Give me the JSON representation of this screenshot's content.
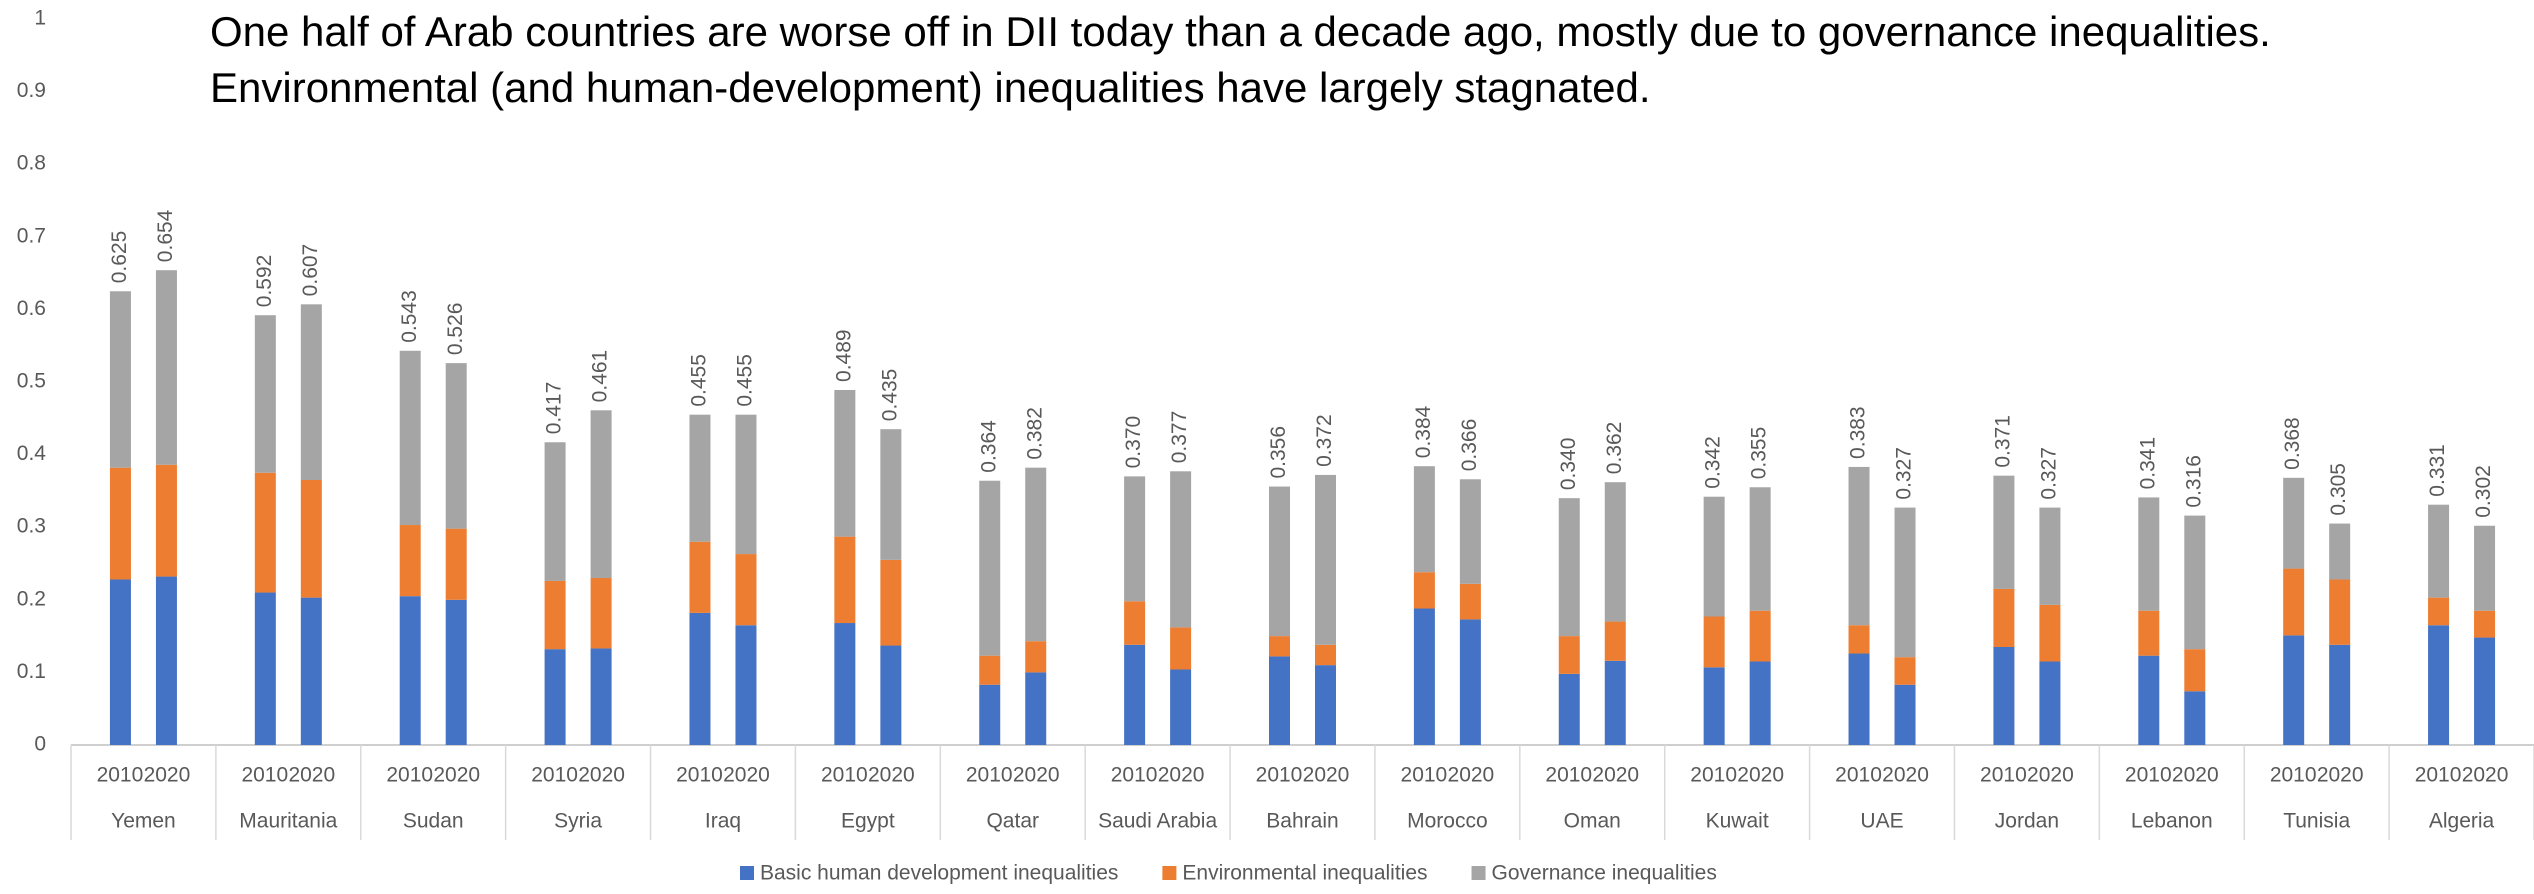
{
  "chart_data": {
    "type": "stacked-bar",
    "title": "One half of Arab countries are worse off in DII today than a decade ago, mostly due to governance inequalities.",
    "subtitle": "Environmental (and human-development) inequalities have largely stagnated.",
    "groups": [
      "Yemen",
      "Mauritania",
      "Sudan",
      "Syria",
      "Iraq",
      "Egypt",
      "Qatar",
      "Saudi Arabia",
      "Bahrain",
      "Morocco",
      "Oman",
      "Kuwait",
      "UAE",
      "Jordan",
      "Lebanon",
      "Tunisia",
      "Algeria"
    ],
    "subcategories": [
      "2010",
      "2020"
    ],
    "ylim": [
      0,
      1
    ],
    "yticks": [
      0,
      0.1,
      0.2,
      0.3,
      0.4,
      0.5,
      0.6,
      0.7,
      0.8,
      0.9,
      1
    ],
    "grid": false,
    "legend": "bottom",
    "series": [
      {
        "name": "Basic human development inequalities",
        "color": "#4472c4",
        "values": [
          0.228,
          0.232,
          0.21,
          0.203,
          0.205,
          0.2,
          0.132,
          0.133,
          0.182,
          0.165,
          0.168,
          0.137,
          0.083,
          0.1,
          0.138,
          0.104,
          0.122,
          0.11,
          0.188,
          0.173,
          0.098,
          0.116,
          0.107,
          0.115,
          0.126,
          0.083,
          0.135,
          0.115,
          0.123,
          0.074,
          0.151,
          0.138,
          0.165,
          0.148
        ]
      },
      {
        "name": "Environmental inequalities",
        "color": "#ed7d31",
        "values": [
          0.154,
          0.154,
          0.165,
          0.162,
          0.098,
          0.098,
          0.094,
          0.097,
          0.098,
          0.098,
          0.119,
          0.118,
          0.04,
          0.043,
          0.06,
          0.058,
          0.028,
          0.028,
          0.05,
          0.049,
          0.052,
          0.054,
          0.07,
          0.07,
          0.039,
          0.038,
          0.08,
          0.078,
          0.062,
          0.058,
          0.092,
          0.09,
          0.038,
          0.037
        ]
      },
      {
        "name": "Governance inequalities",
        "color": "#a5a5a5",
        "values": [
          0.243,
          0.268,
          0.217,
          0.242,
          0.24,
          0.228,
          0.191,
          0.231,
          0.175,
          0.192,
          0.202,
          0.18,
          0.241,
          0.239,
          0.172,
          0.215,
          0.206,
          0.234,
          0.146,
          0.144,
          0.19,
          0.192,
          0.165,
          0.17,
          0.218,
          0.206,
          0.156,
          0.134,
          0.156,
          0.184,
          0.125,
          0.077,
          0.128,
          0.117
        ]
      }
    ],
    "totals": [
      0.625,
      0.654,
      0.592,
      0.607,
      0.543,
      0.526,
      0.417,
      0.461,
      0.455,
      0.455,
      0.489,
      0.435,
      0.364,
      0.382,
      0.37,
      0.377,
      0.356,
      0.372,
      0.384,
      0.366,
      0.34,
      0.362,
      0.342,
      0.355,
      0.383,
      0.327,
      0.371,
      0.327,
      0.341,
      0.316,
      0.368,
      0.305,
      0.331,
      0.302
    ],
    "total_labels": [
      "0.625",
      "0.654",
      "0.592",
      "0.607",
      "0.543",
      "0.526",
      "0.417",
      "0.461",
      "0.455",
      "0.455",
      "0.489",
      "0.435",
      "0.364",
      "0.382",
      "0.370",
      "0.377",
      "0.356",
      "0.372",
      "0.384",
      "0.366",
      "0.340",
      "0.362",
      "0.342",
      "0.355",
      "0.383",
      "0.327",
      "0.371",
      "0.327",
      "0.341",
      "0.316",
      "0.368",
      "0.305",
      "0.331",
      "0.302"
    ]
  }
}
